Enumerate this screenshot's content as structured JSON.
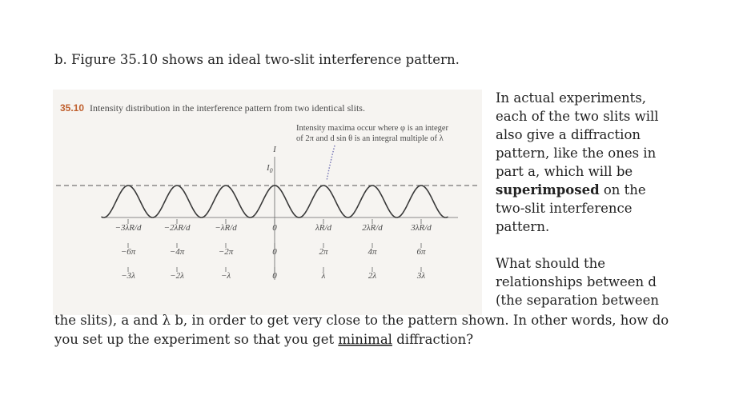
{
  "heading": "b. Figure 35.10 shows an ideal two-slit interference pattern.",
  "figure": {
    "number": "35.10",
    "caption": "Intensity distribution in the interference pattern from two identical slits.",
    "annotation": [
      "Intensity maxima occur where φ is an integer",
      "of 2π and d sin θ is an integral multiple of λ"
    ],
    "axis_label": "I",
    "peak_label": "I",
    "peak_label_sub": "0",
    "position_labels": [
      "−3λR/d",
      "−2λR/d",
      "−λR/d",
      "0",
      "λR/d",
      "2λR/d",
      "3λR/d"
    ],
    "phase_labels": [
      "−6π",
      "−4π",
      "−2π",
      "0",
      "2π",
      "4π",
      "6π"
    ],
    "path_labels": [
      "−3λ",
      "−2λ",
      "−λ",
      "0",
      "λ",
      "2λ",
      "3λ"
    ]
  },
  "paragraph_1": {
    "lines": [
      "In actual experiments,",
      "each of the two slits will",
      "also give a diffraction",
      "pattern, like the ones in",
      "part a, which will be"
    ],
    "bold": "superimposed",
    "bold_rest": " on the",
    "lines_after": [
      "two-slit interference",
      "pattern."
    ]
  },
  "paragraph_2": {
    "lines": [
      "What should the",
      "relationships between d",
      "(the separation between",
      "the slits), a and λ b, in order to get very close to the pattern shown. In other words, how do"
    ],
    "last_before": "you set up the experiment so that you get ",
    "underlined": "minimal",
    "last_after": " diffraction?"
  }
}
